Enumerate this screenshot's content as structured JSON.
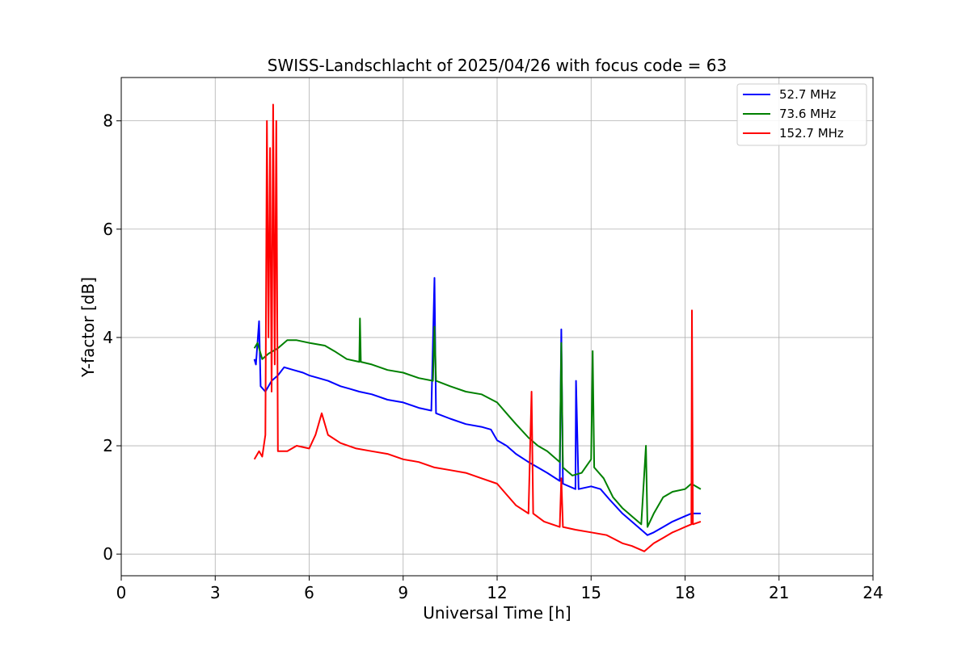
{
  "chart_data": {
    "type": "line",
    "title": "SWISS-Landschlacht of 2025/04/26 with focus code = 63",
    "xlabel": "Universal Time [h]",
    "ylabel": "Y-factor [dB]",
    "xlim": [
      0,
      24
    ],
    "ylim": [
      -0.4,
      8.8
    ],
    "xticks": [
      0,
      3,
      6,
      9,
      12,
      15,
      18,
      21,
      24
    ],
    "yticks": [
      0,
      2,
      4,
      6,
      8
    ],
    "grid": true,
    "legend_position": "top-right",
    "series": [
      {
        "name": "  52.7 MHz",
        "color": "#0000ff",
        "points": [
          [
            4.25,
            3.6
          ],
          [
            4.3,
            3.5
          ],
          [
            4.4,
            4.3
          ],
          [
            4.45,
            3.1
          ],
          [
            4.6,
            3.0
          ],
          [
            4.8,
            3.2
          ],
          [
            5.0,
            3.3
          ],
          [
            5.2,
            3.45
          ],
          [
            5.5,
            3.4
          ],
          [
            5.8,
            3.35
          ],
          [
            6.0,
            3.3
          ],
          [
            6.3,
            3.25
          ],
          [
            6.6,
            3.2
          ],
          [
            7.0,
            3.1
          ],
          [
            7.3,
            3.05
          ],
          [
            7.6,
            3.0
          ],
          [
            8.0,
            2.95
          ],
          [
            8.5,
            2.85
          ],
          [
            9.0,
            2.8
          ],
          [
            9.5,
            2.7
          ],
          [
            9.9,
            2.65
          ],
          [
            10.0,
            5.1
          ],
          [
            10.05,
            2.6
          ],
          [
            10.5,
            2.5
          ],
          [
            11.0,
            2.4
          ],
          [
            11.5,
            2.35
          ],
          [
            11.8,
            2.3
          ],
          [
            12.0,
            2.1
          ],
          [
            12.3,
            2.0
          ],
          [
            12.6,
            1.85
          ],
          [
            13.0,
            1.7
          ],
          [
            13.3,
            1.6
          ],
          [
            13.6,
            1.5
          ],
          [
            14.0,
            1.35
          ],
          [
            14.05,
            4.15
          ],
          [
            14.1,
            1.3
          ],
          [
            14.5,
            1.2
          ],
          [
            14.52,
            3.2
          ],
          [
            14.6,
            1.2
          ],
          [
            15.0,
            1.25
          ],
          [
            15.3,
            1.2
          ],
          [
            15.6,
            1.0
          ],
          [
            16.0,
            0.75
          ],
          [
            16.3,
            0.6
          ],
          [
            16.6,
            0.45
          ],
          [
            16.8,
            0.35
          ],
          [
            17.0,
            0.4
          ],
          [
            17.3,
            0.5
          ],
          [
            17.6,
            0.6
          ],
          [
            18.0,
            0.7
          ],
          [
            18.2,
            0.75
          ],
          [
            18.5,
            0.75
          ]
        ]
      },
      {
        "name": "  73.6 MHz",
        "color": "#008000",
        "points": [
          [
            4.25,
            3.8
          ],
          [
            4.35,
            3.9
          ],
          [
            4.5,
            3.6
          ],
          [
            4.7,
            3.7
          ],
          [
            5.0,
            3.8
          ],
          [
            5.3,
            3.95
          ],
          [
            5.6,
            3.95
          ],
          [
            6.0,
            3.9
          ],
          [
            6.5,
            3.85
          ],
          [
            6.8,
            3.75
          ],
          [
            7.2,
            3.6
          ],
          [
            7.6,
            3.55
          ],
          [
            7.62,
            4.35
          ],
          [
            7.65,
            3.55
          ],
          [
            8.0,
            3.5
          ],
          [
            8.5,
            3.4
          ],
          [
            9.0,
            3.35
          ],
          [
            9.5,
            3.25
          ],
          [
            9.95,
            3.2
          ],
          [
            10.0,
            4.2
          ],
          [
            10.05,
            3.2
          ],
          [
            10.5,
            3.1
          ],
          [
            11.0,
            3.0
          ],
          [
            11.5,
            2.95
          ],
          [
            12.0,
            2.8
          ],
          [
            12.3,
            2.6
          ],
          [
            12.6,
            2.4
          ],
          [
            13.0,
            2.15
          ],
          [
            13.3,
            2.0
          ],
          [
            13.6,
            1.9
          ],
          [
            14.0,
            1.7
          ],
          [
            14.05,
            3.9
          ],
          [
            14.1,
            1.6
          ],
          [
            14.4,
            1.45
          ],
          [
            14.7,
            1.5
          ],
          [
            15.0,
            1.75
          ],
          [
            15.05,
            3.75
          ],
          [
            15.1,
            1.6
          ],
          [
            15.4,
            1.4
          ],
          [
            15.7,
            1.05
          ],
          [
            16.0,
            0.85
          ],
          [
            16.3,
            0.7
          ],
          [
            16.6,
            0.55
          ],
          [
            16.75,
            2.0
          ],
          [
            16.8,
            0.5
          ],
          [
            17.0,
            0.75
          ],
          [
            17.3,
            1.05
          ],
          [
            17.6,
            1.15
          ],
          [
            18.0,
            1.2
          ],
          [
            18.2,
            1.3
          ],
          [
            18.5,
            1.2
          ]
        ]
      },
      {
        "name": "  152.7 MHz",
        "color": "#ff0000",
        "points": [
          [
            4.25,
            1.75
          ],
          [
            4.4,
            1.9
          ],
          [
            4.5,
            1.8
          ],
          [
            4.6,
            2.2
          ],
          [
            4.65,
            8.0
          ],
          [
            4.7,
            4.0
          ],
          [
            4.75,
            7.5
          ],
          [
            4.8,
            3.0
          ],
          [
            4.85,
            8.3
          ],
          [
            4.9,
            3.5
          ],
          [
            4.95,
            8.0
          ],
          [
            5.0,
            1.9
          ],
          [
            5.3,
            1.9
          ],
          [
            5.6,
            2.0
          ],
          [
            6.0,
            1.95
          ],
          [
            6.2,
            2.2
          ],
          [
            6.4,
            2.6
          ],
          [
            6.6,
            2.2
          ],
          [
            7.0,
            2.05
          ],
          [
            7.5,
            1.95
          ],
          [
            8.0,
            1.9
          ],
          [
            8.5,
            1.85
          ],
          [
            9.0,
            1.75
          ],
          [
            9.5,
            1.7
          ],
          [
            10.0,
            1.6
          ],
          [
            10.5,
            1.55
          ],
          [
            11.0,
            1.5
          ],
          [
            11.5,
            1.4
          ],
          [
            12.0,
            1.3
          ],
          [
            12.3,
            1.1
          ],
          [
            12.6,
            0.9
          ],
          [
            13.0,
            0.75
          ],
          [
            13.1,
            3.0
          ],
          [
            13.15,
            0.75
          ],
          [
            13.5,
            0.6
          ],
          [
            14.0,
            0.5
          ],
          [
            14.05,
            1.4
          ],
          [
            14.1,
            0.5
          ],
          [
            14.5,
            0.45
          ],
          [
            15.0,
            0.4
          ],
          [
            15.5,
            0.35
          ],
          [
            16.0,
            0.2
          ],
          [
            16.3,
            0.15
          ],
          [
            16.7,
            0.05
          ],
          [
            17.0,
            0.2
          ],
          [
            17.3,
            0.3
          ],
          [
            17.6,
            0.4
          ],
          [
            17.8,
            0.45
          ],
          [
            18.0,
            0.5
          ],
          [
            18.2,
            0.55
          ],
          [
            18.22,
            4.5
          ],
          [
            18.25,
            0.55
          ],
          [
            18.5,
            0.6
          ]
        ]
      }
    ]
  }
}
